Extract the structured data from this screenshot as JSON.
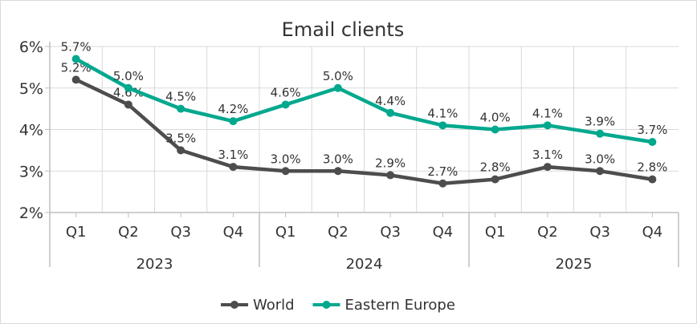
{
  "chart_data": {
    "type": "line",
    "title": "Email clients",
    "xlabel": "",
    "ylabel": "",
    "ylim": [
      2,
      6
    ],
    "yticks": [
      "2%",
      "3%",
      "4%",
      "5%",
      "6%"
    ],
    "grid": true,
    "legend_position": "bottom",
    "categories": [
      "Q1",
      "Q2",
      "Q3",
      "Q4",
      "Q1",
      "Q2",
      "Q3",
      "Q4",
      "Q1",
      "Q2",
      "Q3",
      "Q4"
    ],
    "groups": [
      {
        "label": "2023",
        "count": 4
      },
      {
        "label": "2024",
        "count": 4
      },
      {
        "label": "2025",
        "count": 4
      }
    ],
    "series": [
      {
        "name": "World",
        "color": "#4d4d4d",
        "values": [
          5.2,
          4.6,
          3.5,
          3.1,
          3.0,
          3.0,
          2.9,
          2.7,
          2.8,
          3.1,
          3.0,
          2.8
        ],
        "labels": [
          "5.2%",
          "4.6%",
          "3.5%",
          "3.1%",
          "3.0%",
          "3.0%",
          "2.9%",
          "2.7%",
          "2.8%",
          "3.1%",
          "3.0%",
          "2.8%"
        ]
      },
      {
        "name": "Eastern Europe",
        "color": "#00a88e",
        "values": [
          5.7,
          5.0,
          4.5,
          4.2,
          4.6,
          5.0,
          4.4,
          4.1,
          4.0,
          4.1,
          3.9,
          3.7
        ],
        "labels": [
          "5.7%",
          "5.0%",
          "4.5%",
          "4.2%",
          "4.6%",
          "5.0%",
          "4.4%",
          "4.1%",
          "4.0%",
          "4.1%",
          "3.9%",
          "3.7%"
        ]
      }
    ]
  }
}
